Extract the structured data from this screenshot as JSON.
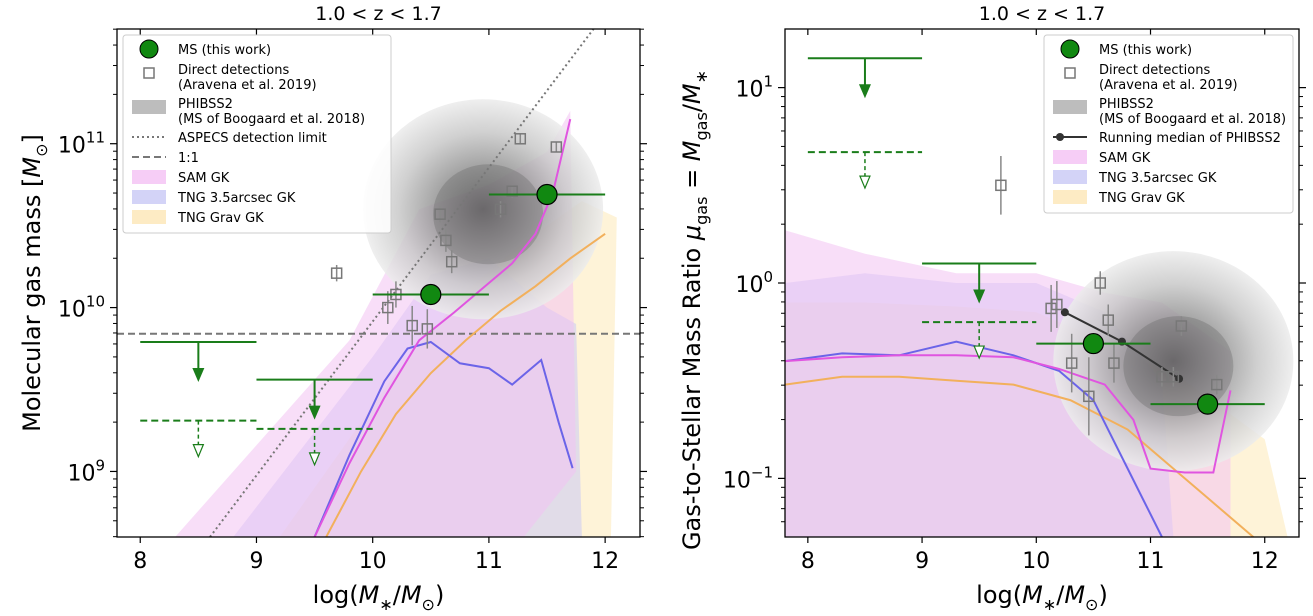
{
  "chart_data": [
    {
      "type": "scatter",
      "title": "1.0 < z < 1.7",
      "xlabel": "log(M*/M☉)",
      "ylabel": "Molecular gas mass [M☉]",
      "xlim": [
        7.8,
        12.3
      ],
      "ylim_log10": [
        8.6,
        11.7
      ],
      "yscale": "log",
      "xticks": [
        8,
        9,
        10,
        11,
        12
      ],
      "xtick_labels": [
        "8",
        "9",
        "10",
        "11",
        "12"
      ],
      "yticks_log10": [
        9,
        10,
        11
      ],
      "ytick_base": "10",
      "ytick_exponents": [
        "9",
        "10",
        "11"
      ],
      "grid": false,
      "legend_position": "top-left",
      "legend": [
        {
          "label": "MS (this work)",
          "kind": "ms"
        },
        {
          "label": "Direct detections",
          "label2": "(Aravena et al. 2019)",
          "kind": "direct"
        },
        {
          "label": "PHIBSS2",
          "label2": "(MS of Boogaard et al. 2018)",
          "kind": "phibss"
        },
        {
          "label": "ASPECS detection limit",
          "kind": "dotted"
        },
        {
          "label": "1:1",
          "kind": "dashed"
        },
        {
          "label": "SAM GK",
          "kind": "sam"
        },
        {
          "label": "TNG 3.5arcsec GK",
          "kind": "tng35"
        },
        {
          "label": "TNG Grav GK",
          "kind": "tnggrav"
        }
      ],
      "ms_points": [
        {
          "x": 10.5,
          "y_log10": 10.08,
          "x_err": 0.5
        },
        {
          "x": 11.5,
          "y_log10": 10.69,
          "x_err": 0.5
        }
      ],
      "upper_limits_solid": [
        {
          "x": 8.5,
          "y_log10": 9.79,
          "x_err": 0.5
        },
        {
          "x": 9.5,
          "y_log10": 9.56,
          "x_err": 0.5
        }
      ],
      "upper_limits_dashed": [
        {
          "x": 8.5,
          "y_log10": 9.31,
          "x_err": 0.5
        },
        {
          "x": 9.5,
          "y_log10": 9.26,
          "x_err": 0.5
        }
      ],
      "direct_detections": [
        {
          "x": 9.69,
          "y_log10": 10.21,
          "yerr": 0.05
        },
        {
          "x": 10.13,
          "y_log10": 10.0,
          "yerr": 0.1
        },
        {
          "x": 10.2,
          "y_log10": 10.08,
          "yerr": 0.08
        },
        {
          "x": 10.34,
          "y_log10": 9.89,
          "yerr": 0.12
        },
        {
          "x": 10.47,
          "y_log10": 9.87,
          "yerr": 0.12
        },
        {
          "x": 10.58,
          "y_log10": 10.57,
          "yerr": 0.05
        },
        {
          "x": 10.63,
          "y_log10": 10.41,
          "yerr": 0.07
        },
        {
          "x": 10.68,
          "y_log10": 10.28,
          "yerr": 0.07
        },
        {
          "x": 11.1,
          "y_log10": 10.6,
          "yerr": 0.05
        },
        {
          "x": 11.2,
          "y_log10": 10.71,
          "yerr": 0.04
        },
        {
          "x": 11.27,
          "y_log10": 11.03,
          "yerr": 0.03
        },
        {
          "x": 11.58,
          "y_log10": 10.98,
          "yerr": 0.03
        }
      ],
      "one_to_one_log10": 9.84,
      "aspecs_limit_line": {
        "x": [
          8.6,
          11.9
        ],
        "y_log10": [
          8.6,
          11.7
        ]
      },
      "sam_median": {
        "x": [
          9.5,
          9.8,
          10.1,
          10.4,
          10.7,
          11.0,
          11.2,
          11.4,
          11.55,
          11.7
        ],
        "y_log10": [
          8.6,
          9.05,
          9.45,
          9.8,
          9.97,
          10.15,
          10.27,
          10.45,
          10.7,
          11.15
        ]
      },
      "tng35_median": {
        "x": [
          9.5,
          9.8,
          10.1,
          10.3,
          10.5,
          10.75,
          11.0,
          11.2,
          11.45,
          11.6,
          11.72
        ],
        "y_log10": [
          8.6,
          9.1,
          9.55,
          9.75,
          9.79,
          9.66,
          9.63,
          9.53,
          9.68,
          9.3,
          9.02
        ]
      },
      "tnggrav_median": {
        "x": [
          9.6,
          9.9,
          10.2,
          10.5,
          10.8,
          11.1,
          11.4,
          11.7,
          12.0
        ],
        "y_log10": [
          8.6,
          9.0,
          9.35,
          9.6,
          9.8,
          9.98,
          10.13,
          10.3,
          10.45
        ]
      }
    },
    {
      "type": "scatter",
      "title": "1.0 < z < 1.7",
      "xlabel": "log(M*/M☉)",
      "ylabel": "Gas-to-Stellar Mass Ratio  μgas = Mgas/M*",
      "xlim": [
        7.8,
        12.3
      ],
      "ylim_log10": [
        -1.3,
        1.3
      ],
      "yscale": "log",
      "xticks": [
        8,
        9,
        10,
        11,
        12
      ],
      "xtick_labels": [
        "8",
        "9",
        "10",
        "11",
        "12"
      ],
      "yticks_log10": [
        -1,
        0,
        1
      ],
      "ytick_base": "10",
      "ytick_exponents": [
        "−1",
        "0",
        "1"
      ],
      "grid": false,
      "legend_position": "top-right",
      "legend": [
        {
          "label": "MS (this work)",
          "kind": "ms"
        },
        {
          "label": "Direct detections",
          "label2": "(Aravena et al. 2019)",
          "kind": "direct"
        },
        {
          "label": "PHIBSS2",
          "label2": "(MS of Boogaard et al. 2018)",
          "kind": "phibss"
        },
        {
          "label": "Running median of PHIBSS2",
          "kind": "running"
        },
        {
          "label": "SAM GK",
          "kind": "sam"
        },
        {
          "label": "TNG 3.5arcsec GK",
          "kind": "tng35"
        },
        {
          "label": "TNG Grav GK",
          "kind": "tnggrav"
        }
      ],
      "ms_points": [
        {
          "x": 10.5,
          "y_log10": -0.31,
          "x_err": 0.5
        },
        {
          "x": 11.5,
          "y_log10": -0.62,
          "x_err": 0.5
        }
      ],
      "upper_limits_solid": [
        {
          "x": 8.5,
          "y_log10": 1.15,
          "x_err": 0.5
        },
        {
          "x": 9.5,
          "y_log10": 0.1,
          "x_err": 0.5
        }
      ],
      "upper_limits_dashed": [
        {
          "x": 8.5,
          "y_log10": 0.67,
          "x_err": 0.5
        },
        {
          "x": 9.5,
          "y_log10": -0.2,
          "x_err": 0.5
        }
      ],
      "direct_detections": [
        {
          "x": 9.69,
          "y_log10": 0.5,
          "yerr": 0.15
        },
        {
          "x": 10.13,
          "y_log10": -0.13,
          "yerr": 0.12
        },
        {
          "x": 10.18,
          "y_log10": -0.11,
          "yerr": 0.12
        },
        {
          "x": 10.31,
          "y_log10": -0.41,
          "yerr": 0.15
        },
        {
          "x": 10.46,
          "y_log10": -0.58,
          "yerr": 0.2
        },
        {
          "x": 10.56,
          "y_log10": 0.0,
          "yerr": 0.06
        },
        {
          "x": 10.63,
          "y_log10": -0.19,
          "yerr": 0.08
        },
        {
          "x": 10.68,
          "y_log10": -0.41,
          "yerr": 0.1
        },
        {
          "x": 11.1,
          "y_log10": -0.48,
          "yerr": 0.05
        },
        {
          "x": 11.2,
          "y_log10": -0.48,
          "yerr": 0.05
        },
        {
          "x": 11.27,
          "y_log10": -0.22,
          "yerr": 0.05
        },
        {
          "x": 11.58,
          "y_log10": -0.52,
          "yerr": 0.05
        }
      ],
      "running_median": {
        "x": [
          10.25,
          10.75,
          11.25
        ],
        "y_log10": [
          -0.15,
          -0.3,
          -0.49
        ]
      },
      "sam_median": {
        "x": [
          7.8,
          8.3,
          8.8,
          9.3,
          9.8,
          10.2,
          10.6,
          10.85,
          11.0,
          11.3,
          11.55,
          11.7
        ],
        "y_log10": [
          -0.4,
          -0.38,
          -0.37,
          -0.37,
          -0.38,
          -0.44,
          -0.52,
          -0.7,
          -0.95,
          -0.97,
          -0.97,
          -0.55
        ]
      },
      "tng35_median": {
        "x": [
          7.8,
          8.3,
          8.8,
          9.3,
          9.8,
          10.2,
          10.5,
          10.8,
          11.1
        ],
        "y_log10": [
          -0.4,
          -0.36,
          -0.37,
          -0.3,
          -0.37,
          -0.45,
          -0.6,
          -0.95,
          -1.3
        ]
      },
      "tnggrav_median": {
        "x": [
          7.8,
          8.3,
          8.8,
          9.3,
          9.8,
          10.3,
          10.8,
          11.2,
          11.5,
          11.9
        ],
        "y_log10": [
          -0.52,
          -0.48,
          -0.48,
          -0.5,
          -0.52,
          -0.6,
          -0.75,
          -0.95,
          -1.1,
          -1.3
        ]
      }
    }
  ]
}
